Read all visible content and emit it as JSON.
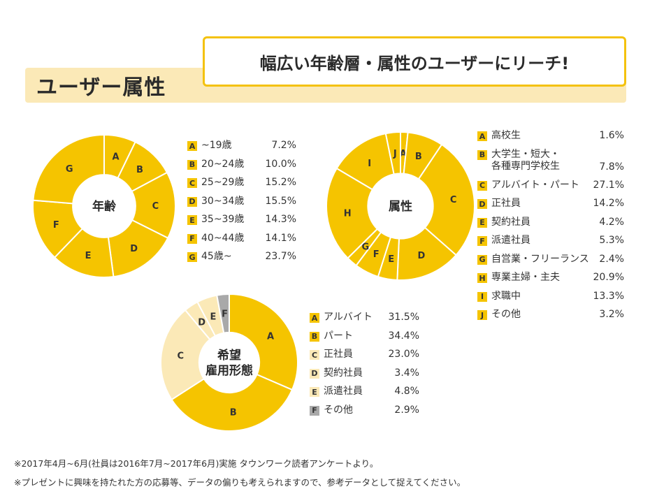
{
  "header": {
    "section_title": "ユーザー属性",
    "headline": "幅広い年齢層・属性のユーザーにリーチ!"
  },
  "colors": {
    "accent": "#f5c400",
    "light_accent": "#fbe9b7",
    "gray": "#a9a9a9",
    "segment_label": "#333333"
  },
  "chart_data": [
    {
      "type": "pie",
      "title": "年齢",
      "categories": [
        "A",
        "B",
        "C",
        "D",
        "E",
        "F",
        "G"
      ],
      "labels": [
        "~19歳",
        "20~24歳",
        "25~29歳",
        "30~34歳",
        "35~39歳",
        "40~44歳",
        "45歳~"
      ],
      "values": [
        7.2,
        10.0,
        15.2,
        15.5,
        14.3,
        14.1,
        23.7
      ],
      "value_labels": [
        "7.2%",
        "10.0%",
        "15.2%",
        "15.5%",
        "14.3%",
        "14.1%",
        "23.7%"
      ]
    },
    {
      "type": "pie",
      "title": "属性",
      "categories": [
        "A",
        "B",
        "C",
        "D",
        "E",
        "F",
        "G",
        "H",
        "I",
        "J"
      ],
      "labels": [
        "高校生",
        "大学生・短大・\n各種専門学校生",
        "アルバイト・パート",
        "正社員",
        "契約社員",
        "派遣社員",
        "自営業・フリーランス",
        "専業主婦・主夫",
        "求職中",
        "その他"
      ],
      "values": [
        1.6,
        7.8,
        27.1,
        14.2,
        4.2,
        5.3,
        2.4,
        20.9,
        13.3,
        3.2
      ],
      "value_labels": [
        "1.6%",
        "7.8%",
        "27.1%",
        "14.2%",
        "4.2%",
        "5.3%",
        "2.4%",
        "20.9%",
        "13.3%",
        "3.2%"
      ]
    },
    {
      "type": "pie",
      "title": "希望\n雇用形態",
      "categories": [
        "A",
        "B",
        "C",
        "D",
        "E",
        "F"
      ],
      "labels": [
        "アルバイト",
        "パート",
        "正社員",
        "契約社員",
        "派遣社員",
        "その他"
      ],
      "values": [
        31.5,
        34.4,
        23.0,
        3.4,
        4.8,
        2.9
      ],
      "value_labels": [
        "31.5%",
        "34.4%",
        "23.0%",
        "3.4%",
        "4.8%",
        "2.9%"
      ],
      "segment_colors": [
        "#f5c400",
        "#f5c400",
        "#fbe9b7",
        "#fbe9b7",
        "#fbe9b7",
        "#a9a9a9"
      ]
    }
  ],
  "notes": [
    "※2017年4月~6月(社員は2016年7月~2017年6月)実施 タウンワーク読者アンケートより。",
    "※プレゼントに興味を持たれた方の応募等、データの偏りも考えられますので、参考データとして捉えてください。"
  ]
}
